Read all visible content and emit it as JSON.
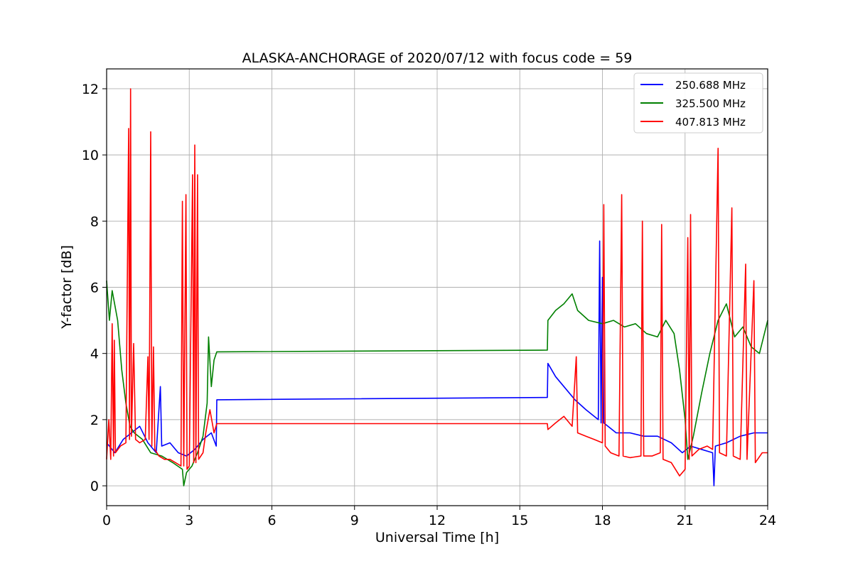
{
  "chart_data": {
    "type": "line",
    "title": "ALASKA-ANCHORAGE of 2020/07/12 with focus code = 59",
    "xlabel": "Universal Time [h]",
    "ylabel": "Y-factor [dB]",
    "xlim": [
      0,
      24
    ],
    "ylim": [
      -0.6,
      12.6
    ],
    "x_ticks": [
      "0",
      "3",
      "6",
      "9",
      "12",
      "15",
      "18",
      "21",
      "24"
    ],
    "y_ticks": [
      "0",
      "2",
      "4",
      "6",
      "8",
      "10",
      "12"
    ],
    "grid": true,
    "legend_position": "top-right",
    "series": [
      {
        "name": "250.688 MHz",
        "color": "#0000ff",
        "points": [
          [
            0,
            1.3
          ],
          [
            0.3,
            1.0
          ],
          [
            0.6,
            1.4
          ],
          [
            0.9,
            1.6
          ],
          [
            1.2,
            1.8
          ],
          [
            1.5,
            1.3
          ],
          [
            1.8,
            1.0
          ],
          [
            1.95,
            3.0
          ],
          [
            2.0,
            1.2
          ],
          [
            2.3,
            1.3
          ],
          [
            2.6,
            1.0
          ],
          [
            2.9,
            0.9
          ],
          [
            3.2,
            1.1
          ],
          [
            3.5,
            1.4
          ],
          [
            3.8,
            1.6
          ],
          [
            3.98,
            1.2
          ],
          [
            4.0,
            2.6
          ],
          [
            16.0,
            2.67
          ],
          [
            16.02,
            3.7
          ],
          [
            16.3,
            3.3
          ],
          [
            16.6,
            3.0
          ],
          [
            17.0,
            2.6
          ],
          [
            17.4,
            2.3
          ],
          [
            17.85,
            2.0
          ],
          [
            17.9,
            7.4
          ],
          [
            17.95,
            1.9
          ],
          [
            18.0,
            6.3
          ],
          [
            18.05,
            1.9
          ],
          [
            18.5,
            1.6
          ],
          [
            19.0,
            1.6
          ],
          [
            19.5,
            1.5
          ],
          [
            20.0,
            1.5
          ],
          [
            20.5,
            1.3
          ],
          [
            20.9,
            1.0
          ],
          [
            21.2,
            1.2
          ],
          [
            21.6,
            1.1
          ],
          [
            22.0,
            1.0
          ],
          [
            22.05,
            0.0
          ],
          [
            22.1,
            1.2
          ],
          [
            22.5,
            1.3
          ],
          [
            23.0,
            1.5
          ],
          [
            23.5,
            1.6
          ],
          [
            24.0,
            1.6
          ]
        ]
      },
      {
        "name": "325.500 MHz",
        "color": "#008000",
        "points": [
          [
            0,
            6.2
          ],
          [
            0.1,
            5.0
          ],
          [
            0.2,
            5.9
          ],
          [
            0.4,
            5.0
          ],
          [
            0.55,
            3.5
          ],
          [
            0.7,
            2.5
          ],
          [
            0.85,
            1.8
          ],
          [
            1.0,
            1.6
          ],
          [
            1.3,
            1.4
          ],
          [
            1.6,
            1.0
          ],
          [
            2.0,
            0.9
          ],
          [
            2.4,
            0.7
          ],
          [
            2.75,
            0.5
          ],
          [
            2.8,
            0.0
          ],
          [
            2.9,
            0.4
          ],
          [
            3.1,
            0.6
          ],
          [
            3.3,
            1.0
          ],
          [
            3.5,
            1.5
          ],
          [
            3.65,
            2.5
          ],
          [
            3.7,
            4.5
          ],
          [
            3.8,
            3.0
          ],
          [
            3.9,
            3.8
          ],
          [
            4.0,
            4.05
          ],
          [
            16.0,
            4.1
          ],
          [
            16.02,
            5.0
          ],
          [
            16.3,
            5.3
          ],
          [
            16.6,
            5.5
          ],
          [
            16.9,
            5.8
          ],
          [
            17.1,
            5.3
          ],
          [
            17.5,
            5.0
          ],
          [
            18.0,
            4.9
          ],
          [
            18.4,
            5.0
          ],
          [
            18.8,
            4.8
          ],
          [
            19.2,
            4.9
          ],
          [
            19.6,
            4.6
          ],
          [
            20.0,
            4.5
          ],
          [
            20.3,
            5.0
          ],
          [
            20.6,
            4.6
          ],
          [
            20.8,
            3.5
          ],
          [
            21.0,
            2.0
          ],
          [
            21.1,
            0.8
          ],
          [
            21.3,
            1.5
          ],
          [
            21.6,
            2.8
          ],
          [
            21.9,
            4.0
          ],
          [
            22.2,
            5.0
          ],
          [
            22.5,
            5.5
          ],
          [
            22.8,
            4.5
          ],
          [
            23.1,
            4.8
          ],
          [
            23.4,
            4.2
          ],
          [
            23.7,
            4.0
          ],
          [
            24.0,
            5.0
          ]
        ]
      },
      {
        "name": "407.813 MHz",
        "color": "#ff0000",
        "points": [
          [
            0,
            0.8
          ],
          [
            0.08,
            2.0
          ],
          [
            0.15,
            0.8
          ],
          [
            0.2,
            4.9
          ],
          [
            0.25,
            0.9
          ],
          [
            0.28,
            4.4
          ],
          [
            0.32,
            1.0
          ],
          [
            0.5,
            1.2
          ],
          [
            0.7,
            1.3
          ],
          [
            0.8,
            10.8
          ],
          [
            0.83,
            1.4
          ],
          [
            0.87,
            12.0
          ],
          [
            0.9,
            1.5
          ],
          [
            0.98,
            4.3
          ],
          [
            1.05,
            1.4
          ],
          [
            1.2,
            1.3
          ],
          [
            1.4,
            1.4
          ],
          [
            1.5,
            3.9
          ],
          [
            1.54,
            1.4
          ],
          [
            1.6,
            10.7
          ],
          [
            1.64,
            1.2
          ],
          [
            1.7,
            4.2
          ],
          [
            1.75,
            1.1
          ],
          [
            1.9,
            0.9
          ],
          [
            2.1,
            0.8
          ],
          [
            2.3,
            0.8
          ],
          [
            2.5,
            0.7
          ],
          [
            2.7,
            0.6
          ],
          [
            2.75,
            8.6
          ],
          [
            2.8,
            0.6
          ],
          [
            2.88,
            8.8
          ],
          [
            2.92,
            0.5
          ],
          [
            3.0,
            0.6
          ],
          [
            3.12,
            9.4
          ],
          [
            3.16,
            0.7
          ],
          [
            3.2,
            10.3
          ],
          [
            3.24,
            0.7
          ],
          [
            3.3,
            9.4
          ],
          [
            3.34,
            0.8
          ],
          [
            3.5,
            1.0
          ],
          [
            3.6,
            1.6
          ],
          [
            3.75,
            2.3
          ],
          [
            3.9,
            1.6
          ],
          [
            4.0,
            1.88
          ],
          [
            16.0,
            1.88
          ],
          [
            16.02,
            1.7
          ],
          [
            16.3,
            1.9
          ],
          [
            16.6,
            2.1
          ],
          [
            16.9,
            1.8
          ],
          [
            17.05,
            3.9
          ],
          [
            17.1,
            1.6
          ],
          [
            17.4,
            1.5
          ],
          [
            17.7,
            1.4
          ],
          [
            18.0,
            1.3
          ],
          [
            18.05,
            8.5
          ],
          [
            18.1,
            1.2
          ],
          [
            18.3,
            1.0
          ],
          [
            18.6,
            0.9
          ],
          [
            18.7,
            8.8
          ],
          [
            18.75,
            0.9
          ],
          [
            19.0,
            0.85
          ],
          [
            19.4,
            0.9
          ],
          [
            19.45,
            8.0
          ],
          [
            19.5,
            0.9
          ],
          [
            19.8,
            0.9
          ],
          [
            20.1,
            1.0
          ],
          [
            20.15,
            7.9
          ],
          [
            20.2,
            0.8
          ],
          [
            20.5,
            0.7
          ],
          [
            20.8,
            0.3
          ],
          [
            21.0,
            0.5
          ],
          [
            21.1,
            7.5
          ],
          [
            21.15,
            0.8
          ],
          [
            21.2,
            8.2
          ],
          [
            21.25,
            0.9
          ],
          [
            21.5,
            1.1
          ],
          [
            21.8,
            1.2
          ],
          [
            22.0,
            1.1
          ],
          [
            22.2,
            10.2
          ],
          [
            22.25,
            1.0
          ],
          [
            22.5,
            0.9
          ],
          [
            22.7,
            8.4
          ],
          [
            22.75,
            0.9
          ],
          [
            23.0,
            0.8
          ],
          [
            23.2,
            6.7
          ],
          [
            23.25,
            0.8
          ],
          [
            23.5,
            6.2
          ],
          [
            23.55,
            0.7
          ],
          [
            23.8,
            1.0
          ],
          [
            24.0,
            1.0
          ]
        ]
      }
    ]
  }
}
